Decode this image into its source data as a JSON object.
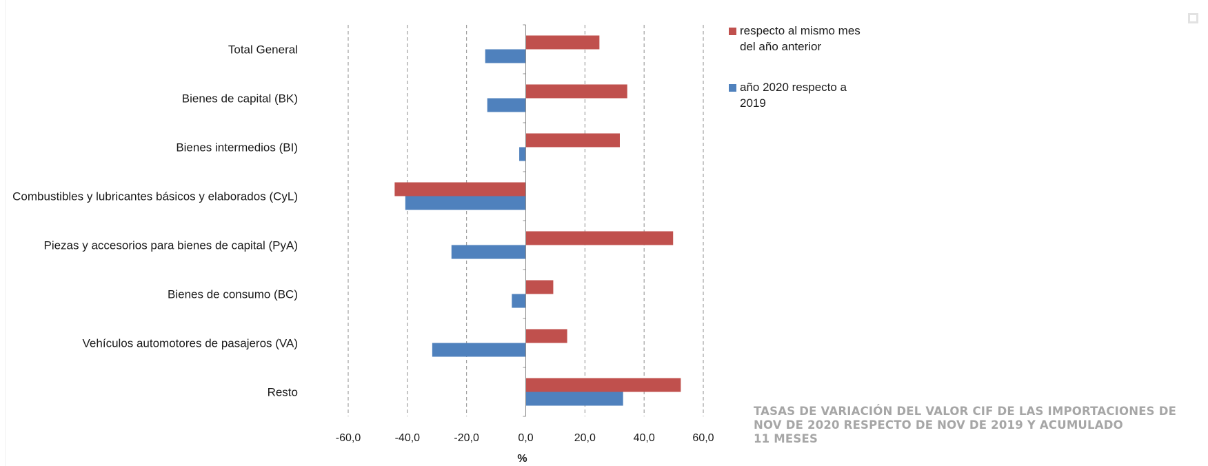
{
  "chart_data": {
    "type": "bar",
    "orientation": "horizontal",
    "categories": [
      "Total General",
      "Bienes de capital (BK)",
      "Bienes intermedios (BI)",
      "Combustibles y lubricantes básicos y elaborados (CyL)",
      "Piezas y accesorios para bienes de capital (PyA)",
      "Bienes de consumo (BC)",
      "Vehículos automotores de pasajeros (VA)",
      "Resto"
    ],
    "series": [
      {
        "name": "respecto al mismo mes del año anterior",
        "legend_lines": [
          "respecto al mismo mes",
          "del año anterior"
        ],
        "color": "#c0504d",
        "values": [
          24.9,
          34.3,
          31.8,
          -44.3,
          49.8,
          9.3,
          14.0,
          52.4
        ]
      },
      {
        "name": "año 2020 respecto a 2019",
        "legend_lines": [
          "año 2020 respecto a",
          "2019"
        ],
        "color": "#4f81bd",
        "values": [
          -13.7,
          -13.0,
          -2.2,
          -40.7,
          -25.1,
          -4.7,
          -31.6,
          32.9
        ]
      }
    ],
    "xlim": [
      -60,
      60
    ],
    "xticks": [
      -60,
      -40,
      -20,
      0,
      20,
      40,
      60
    ],
    "xtick_labels": [
      "-60,0",
      "-40,0",
      "-20,0",
      "0,0",
      "20,0",
      "40,0",
      "60,0"
    ],
    "xlabel": "%",
    "ylabel": "",
    "grid": "vertical dashed",
    "legend_position": "right"
  },
  "caption": {
    "lines": [
      "TASAS DE VARIACIÓN DEL VALOR CIF DE LAS IMPORTACIONES DE",
      "NOV DE 2020 RESPECTO DE NOV DE 2019 Y ACUMULADO",
      "11 MESES"
    ]
  },
  "corner_icon": "square-outline-icon"
}
